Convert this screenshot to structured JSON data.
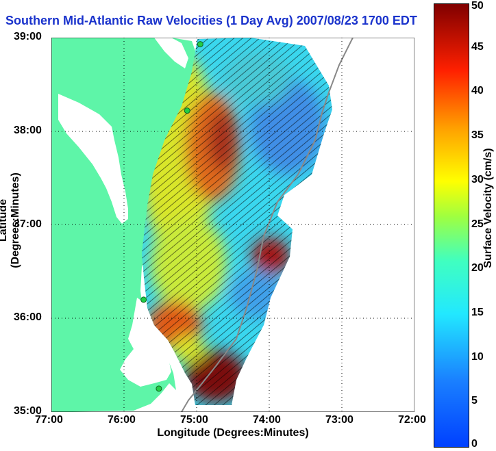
{
  "title": "Southern Mid-Atlantic Raw Velocities (1 Day Avg) 2007/08/23 1700 EDT",
  "axes": {
    "xlabel": "Longitude (Degrees:Minutes)",
    "ylabel": "Latitude (Degrees:Minutes)",
    "xticks": [
      "77:00",
      "76:00",
      "75:00",
      "74:00",
      "73:00",
      "72:00"
    ],
    "yticks": [
      "39:00",
      "38:00",
      "37:00",
      "36:00",
      "35:00"
    ],
    "xrange": [
      -77,
      -72
    ],
    "yrange": [
      35,
      39
    ],
    "grid": "dotted"
  },
  "colorbar": {
    "label": "Surface Velocity (cm/s)",
    "ticks": [
      "50",
      "45",
      "40",
      "35",
      "30",
      "25",
      "20",
      "15",
      "10",
      "5",
      "0"
    ],
    "range": [
      0,
      50
    ]
  },
  "colors": {
    "land": "#5ef5a8",
    "title": "#1a33cc",
    "station": "#22cc44"
  },
  "stations": [
    {
      "lon": -74.95,
      "lat": 38.93
    },
    {
      "lon": -75.13,
      "lat": 38.22
    },
    {
      "lon": -75.73,
      "lat": 36.2
    },
    {
      "lon": -75.52,
      "lat": 35.25
    }
  ]
}
